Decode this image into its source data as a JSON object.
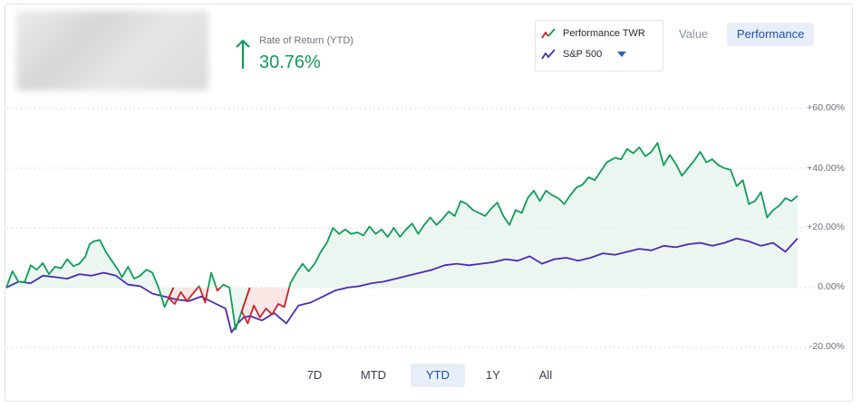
{
  "header": {
    "ror_label": "Rate of Return (YTD)",
    "ror_value": "30.76%"
  },
  "legend": {
    "items": [
      {
        "label": "Performance TWR",
        "colors": [
          "#d0202a",
          "#0f9d58"
        ]
      },
      {
        "label": "S&P 500",
        "colors": [
          "#4b2bb3"
        ]
      }
    ]
  },
  "view_toggle": {
    "value_label": "Value",
    "performance_label": "Performance",
    "active": "Performance"
  },
  "range_buttons": {
    "items": [
      "7D",
      "MTD",
      "YTD",
      "1Y",
      "All"
    ],
    "active": "YTD"
  },
  "colors": {
    "positive": "#0f9d58",
    "negative": "#d0202a",
    "benchmark": "#4b2bb3",
    "positive_fill": "#e6f5ec",
    "negative_fill": "#fbe3e3",
    "gridline": "#d9dee5"
  },
  "chart_data": {
    "type": "line",
    "x_unit": "trading day index (YTD)",
    "ylim": [
      -20,
      60
    ],
    "y_ticks": [
      "+60.00%",
      "+40.00%",
      "+20.00%",
      "0.00%",
      "-20.00%"
    ],
    "y_tick_values": [
      60,
      40,
      20,
      0,
      -20
    ],
    "grid": true,
    "legend_position": "top-right",
    "series": [
      {
        "name": "Performance TWR",
        "x": [
          0,
          3,
          6,
          9,
          12,
          15,
          18,
          21,
          24,
          27,
          30,
          33,
          36,
          39,
          41,
          43,
          46,
          49,
          52,
          55,
          57,
          60,
          63,
          66,
          69,
          72,
          75,
          78,
          80,
          83,
          86,
          89,
          92,
          95,
          98,
          101,
          104,
          107,
          110,
          113,
          116,
          119,
          122,
          125,
          128,
          131,
          134,
          137,
          140,
          143,
          146,
          149,
          152,
          155,
          158,
          161,
          164,
          167,
          170,
          173,
          176,
          179,
          182,
          185,
          188,
          191,
          194,
          197,
          200,
          203,
          206,
          209,
          212,
          215,
          218,
          221,
          224,
          227,
          230,
          233,
          236,
          239,
          242,
          245,
          248,
          251,
          254,
          257,
          260,
          263,
          266,
          269,
          272,
          275,
          278,
          281,
          284,
          287,
          290,
          293,
          296,
          300,
          303,
          306,
          309,
          312,
          315,
          318,
          321,
          324,
          327,
          330,
          333,
          336,
          339,
          342,
          345,
          348,
          351,
          354,
          357,
          360,
          363,
          366,
          369,
          372,
          375,
          378,
          381,
          384,
          387,
          390
        ],
        "values": [
          0,
          5.5,
          2.0,
          1.8,
          7.5,
          6.0,
          8.2,
          4.5,
          7.0,
          6.5,
          9.5,
          7.2,
          8.0,
          10.5,
          14.5,
          15.5,
          16.0,
          12.0,
          9.0,
          6.0,
          3.5,
          7.0,
          3.0,
          4.0,
          6.0,
          5.0,
          0.0,
          -6.5,
          -3.5,
          -5.5,
          -1.5,
          -4.5,
          -2.0,
          0.5,
          -5.0,
          5.0,
          -1.0,
          1.0,
          0.0,
          -14.0,
          -8.0,
          -12.0,
          -6.0,
          -10.0,
          -7.0,
          -9.0,
          -5.5,
          -6.5,
          1.5,
          5.0,
          8.0,
          5.5,
          8.0,
          12.0,
          15.0,
          20.0,
          18.0,
          19.5,
          18.0,
          18.5,
          17.5,
          20.5,
          18.0,
          19.5,
          17.0,
          20.0,
          17.0,
          19.5,
          21.5,
          18.0,
          21.0,
          23.5,
          21.0,
          23.0,
          25.5,
          24.0,
          29.0,
          28.0,
          26.0,
          25.0,
          24.0,
          26.5,
          28.5,
          24.0,
          21.0,
          26.0,
          25.0,
          30.0,
          32.5,
          29.0,
          32.5,
          31.0,
          30.0,
          28.0,
          31.0,
          33.5,
          34.5,
          37.0,
          36.0,
          39.0,
          42.0,
          43.5,
          43.0,
          46.5,
          45.0,
          47.0,
          44.0,
          45.5,
          48.5,
          41.0,
          44.5,
          41.5,
          37.5,
          40.0,
          42.5,
          45.5,
          42.0,
          43.0,
          41.0,
          40.0,
          39.5,
          34.0,
          36.0,
          28.0,
          29.0,
          32.0,
          23.5,
          26.0,
          27.5,
          30.0,
          29.0,
          30.8
        ]
      },
      {
        "name": "S&P 500",
        "x": [
          0,
          6,
          12,
          18,
          24,
          30,
          36,
          42,
          48,
          54,
          60,
          66,
          72,
          78,
          84,
          90,
          96,
          102,
          108,
          111,
          114,
          117,
          120,
          126,
          132,
          138,
          144,
          150,
          156,
          162,
          168,
          174,
          180,
          186,
          192,
          198,
          204,
          210,
          216,
          222,
          228,
          234,
          240,
          246,
          252,
          258,
          264,
          270,
          276,
          282,
          288,
          294,
          300,
          306,
          312,
          318,
          324,
          330,
          336,
          342,
          348,
          354,
          360,
          366,
          372,
          378,
          384,
          390
        ],
        "values": [
          0,
          2.0,
          1.5,
          4.0,
          3.5,
          3.0,
          4.5,
          4.0,
          5.0,
          4.0,
          1.0,
          0.5,
          -2.0,
          -3.0,
          -4.0,
          -4.5,
          -3.0,
          -5.0,
          -7.0,
          -15.0,
          -12.0,
          -10.0,
          -9.5,
          -11.0,
          -8.5,
          -12.0,
          -6.0,
          -5.0,
          -3.0,
          -1.0,
          0.0,
          0.5,
          1.5,
          2.0,
          3.0,
          4.0,
          5.0,
          6.0,
          7.5,
          8.0,
          7.5,
          8.0,
          8.5,
          9.5,
          9.0,
          10.5,
          8.0,
          9.5,
          10.0,
          9.0,
          10.0,
          11.5,
          11.0,
          12.0,
          13.0,
          12.5,
          14.0,
          13.5,
          14.5,
          15.0,
          14.0,
          15.0,
          16.5,
          15.5,
          14.0,
          15.0,
          12.0,
          16.5
        ]
      }
    ]
  }
}
